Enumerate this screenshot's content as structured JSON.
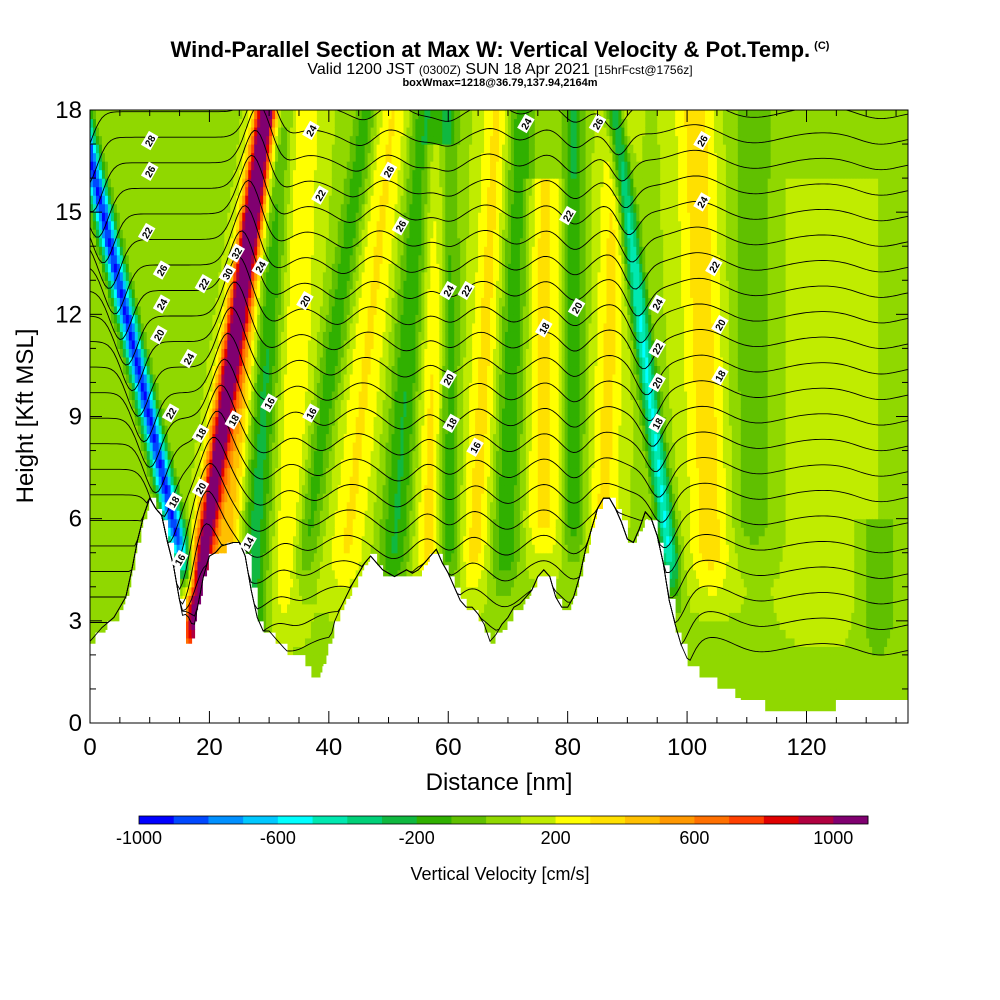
{
  "header": {
    "title": "Wind-Parallel Section at Max W: Vertical Velocity & Pot.Temp.",
    "copyright": "(C)",
    "valid_prefix": "Valid 1200 JST",
    "valid_utc": "(0300Z)",
    "valid_date": "SUN 18 Apr 2021",
    "forecast": "[15hrFcst@1756z]",
    "box_info": "boxWmax=1218@36.79,137.94,2164m"
  },
  "chart_data": {
    "type": "heatmap",
    "xlabel": "Distance [nm]",
    "ylabel": "Height [Kft MSL]",
    "xlim": [
      0,
      137
    ],
    "ylim": [
      0,
      18
    ],
    "x_ticks": [
      0,
      20,
      40,
      60,
      80,
      100,
      120
    ],
    "y_ticks": [
      0,
      3,
      6,
      9,
      12,
      15,
      18
    ],
    "colorbar": {
      "label": "Vertical Velocity [cm/s]",
      "min": -1000,
      "max": 1100,
      "step": 100,
      "tick_labels": [
        "-1000",
        "-600",
        "-200",
        "200",
        "600",
        "1000"
      ],
      "tick_values": [
        -1000,
        -600,
        -200,
        200,
        600,
        1000
      ],
      "colors": [
        "#0000ff",
        "#0048ff",
        "#0090ff",
        "#00c8ff",
        "#00ffff",
        "#00e8b0",
        "#00d078",
        "#10b840",
        "#30b000",
        "#60c000",
        "#90d800",
        "#c0ec00",
        "#ffff00",
        "#ffe000",
        "#ffc000",
        "#ff9800",
        "#ff7000",
        "#ff4000",
        "#e00000",
        "#b00040",
        "#800070"
      ]
    },
    "terrain_profile_kft": [
      [
        0,
        2.3
      ],
      [
        2,
        2.7
      ],
      [
        4,
        3.0
      ],
      [
        6,
        3.6
      ],
      [
        7,
        4.4
      ],
      [
        8,
        5.3
      ],
      [
        9,
        6.0
      ],
      [
        10,
        6.5
      ],
      [
        11,
        6.2
      ],
      [
        12,
        6.0
      ],
      [
        13,
        5.2
      ],
      [
        14,
        4.5
      ],
      [
        15,
        3.5
      ],
      [
        16,
        2.3
      ],
      [
        17,
        2.3
      ],
      [
        18,
        3.3
      ],
      [
        19,
        4.2
      ],
      [
        20,
        4.8
      ],
      [
        21,
        4.9
      ],
      [
        22,
        5.1
      ],
      [
        24,
        5.2
      ],
      [
        25,
        5.2
      ],
      [
        26,
        4.8
      ],
      [
        27,
        3.8
      ],
      [
        28,
        3.0
      ],
      [
        29,
        2.6
      ],
      [
        30,
        2.6
      ],
      [
        31,
        2.4
      ],
      [
        32,
        2.2
      ],
      [
        33,
        2.0
      ],
      [
        35,
        2.0
      ],
      [
        36,
        1.6
      ],
      [
        37,
        1.3
      ],
      [
        38,
        1.3
      ],
      [
        39,
        1.8
      ],
      [
        40,
        2.2
      ],
      [
        41,
        2.9
      ],
      [
        42,
        3.3
      ],
      [
        44,
        4.0
      ],
      [
        46,
        4.6
      ],
      [
        47,
        4.8
      ],
      [
        48,
        4.6
      ],
      [
        49,
        4.4
      ],
      [
        50,
        4.3
      ],
      [
        51,
        4.2
      ],
      [
        52,
        4.3
      ],
      [
        53,
        4.4
      ],
      [
        54,
        4.3
      ],
      [
        55,
        4.4
      ],
      [
        56,
        4.6
      ],
      [
        57,
        4.8
      ],
      [
        58,
        5.0
      ],
      [
        59,
        4.6
      ],
      [
        60,
        4.3
      ],
      [
        61,
        3.9
      ],
      [
        62,
        3.5
      ],
      [
        63,
        3.3
      ],
      [
        64,
        3.3
      ],
      [
        65,
        3.1
      ],
      [
        66,
        2.8
      ],
      [
        67,
        2.3
      ],
      [
        68,
        2.5
      ],
      [
        69,
        2.8
      ],
      [
        70,
        3.0
      ],
      [
        71,
        3.3
      ],
      [
        72,
        3.4
      ],
      [
        74,
        3.8
      ],
      [
        75,
        4.2
      ],
      [
        76,
        4.4
      ],
      [
        77,
        4.2
      ],
      [
        78,
        3.6
      ],
      [
        79,
        3.3
      ],
      [
        80,
        3.3
      ],
      [
        81,
        3.6
      ],
      [
        82,
        4.2
      ],
      [
        83,
        5.0
      ],
      [
        84,
        5.6
      ],
      [
        85,
        6.2
      ],
      [
        86,
        6.5
      ],
      [
        87,
        6.5
      ],
      [
        88,
        6.2
      ],
      [
        89,
        5.8
      ],
      [
        90,
        5.3
      ],
      [
        91,
        5.2
      ],
      [
        92,
        5.6
      ],
      [
        93,
        6.1
      ],
      [
        94,
        5.9
      ],
      [
        95,
        5.4
      ],
      [
        96,
        4.6
      ],
      [
        97,
        3.5
      ],
      [
        98,
        2.8
      ],
      [
        99,
        2.2
      ],
      [
        100,
        1.8
      ],
      [
        101,
        1.5
      ],
      [
        102,
        1.3
      ],
      [
        104,
        1.3
      ],
      [
        105,
        1.0
      ],
      [
        106,
        1.0
      ],
      [
        108,
        0.8
      ],
      [
        110,
        0.7
      ],
      [
        112,
        0.5
      ],
      [
        114,
        0.4
      ],
      [
        116,
        0.3
      ],
      [
        118,
        0.3
      ],
      [
        120,
        0.3
      ],
      [
        122,
        0.3
      ],
      [
        124,
        0.4
      ],
      [
        126,
        0.6
      ],
      [
        128,
        0.7
      ],
      [
        130,
        0.7
      ],
      [
        134,
        0.7
      ],
      [
        137,
        0.7
      ]
    ],
    "vertical_velocity_features_cm_s": [
      {
        "x_base": 14.5,
        "z_base": 5.5,
        "tilt_nm_per_kft": -1.3,
        "width_nm": 1.6,
        "peak": -1000,
        "z_top": 18
      },
      {
        "x_base": 17.5,
        "z_base": 3.0,
        "tilt_nm_per_kft": 0.8,
        "width_nm": 1.8,
        "peak": 1050,
        "z_top": 18
      },
      {
        "x_base": 22.0,
        "z_base": 3.0,
        "tilt_nm_per_kft": 0.55,
        "width_nm": 2.2,
        "peak": 350,
        "z_top": 18
      },
      {
        "x_base": 27.0,
        "z_base": 3.0,
        "tilt_nm_per_kft": 0.3,
        "width_nm": 2.5,
        "peak": -350,
        "z_top": 18
      },
      {
        "x_base": 33.0,
        "z_base": 4.0,
        "tilt_nm_per_kft": 0.2,
        "width_nm": 3.0,
        "peak": 200,
        "z_top": 18
      },
      {
        "x_base": 36.0,
        "z_base": 5.0,
        "tilt_nm_per_kft": 0.8,
        "width_nm": 2.0,
        "peak": -250,
        "z_top": 18
      },
      {
        "x_base": 43.0,
        "z_base": 5.0,
        "tilt_nm_per_kft": 0.6,
        "width_nm": 3.0,
        "peak": 220,
        "z_top": 18
      },
      {
        "x_base": 51.0,
        "z_base": 5.0,
        "tilt_nm_per_kft": 0.4,
        "width_nm": 2.5,
        "peak": -300,
        "z_top": 18
      },
      {
        "x_base": 57.0,
        "z_base": 5.0,
        "tilt_nm_per_kft": 0.1,
        "width_nm": 2.5,
        "peak": 260,
        "z_top": 17
      },
      {
        "x_base": 60.0,
        "z_base": 5.0,
        "tilt_nm_per_kft": 0.0,
        "width_nm": 1.8,
        "peak": -300,
        "z_top": 18
      },
      {
        "x_base": 64.5,
        "z_base": 5.0,
        "tilt_nm_per_kft": 0.3,
        "width_nm": 2.5,
        "peak": 250,
        "z_top": 18
      },
      {
        "x_base": 69.5,
        "z_base": 5.0,
        "tilt_nm_per_kft": 0.2,
        "width_nm": 2.5,
        "peak": -280,
        "z_top": 18
      },
      {
        "x_base": 76.0,
        "z_base": 6.0,
        "tilt_nm_per_kft": 0.0,
        "width_nm": 3.0,
        "peak": 250,
        "z_top": 16
      },
      {
        "x_base": 81.0,
        "z_base": 6.0,
        "tilt_nm_per_kft": 0.0,
        "width_nm": 1.8,
        "peak": -300,
        "z_top": 18
      },
      {
        "x_base": 86.0,
        "z_base": 6.0,
        "tilt_nm_per_kft": 0.2,
        "width_nm": 2.5,
        "peak": 240,
        "z_top": 18
      },
      {
        "x_base": 97.0,
        "z_base": 5.0,
        "tilt_nm_per_kft": -0.7,
        "width_nm": 1.5,
        "peak": -600,
        "z_top": 18
      },
      {
        "x_base": 104.0,
        "z_base": 5.0,
        "tilt_nm_per_kft": -0.2,
        "width_nm": 3.5,
        "peak": 270,
        "z_top": 18
      },
      {
        "x_base": 111.0,
        "z_base": 6.0,
        "tilt_nm_per_kft": 0.0,
        "width_nm": 4.0,
        "peak": -150,
        "z_top": 18
      },
      {
        "x_base": 123.0,
        "z_base": 4.0,
        "tilt_nm_per_kft": 0.0,
        "width_nm": 6.0,
        "peak": 100,
        "z_top": 16
      },
      {
        "x_base": 132.0,
        "z_base": 3.0,
        "tilt_nm_per_kft": 0.0,
        "width_nm": 3.0,
        "peak": -180,
        "z_top": 6
      }
    ],
    "potential_temperature_contour_labels": [
      {
        "value": "28",
        "x": 10.0,
        "z": 17.1
      },
      {
        "value": "26",
        "x": 10.0,
        "z": 16.2
      },
      {
        "value": "22",
        "x": 9.5,
        "z": 14.4
      },
      {
        "value": "26",
        "x": 12.0,
        "z": 13.3
      },
      {
        "value": "24",
        "x": 12.0,
        "z": 12.3
      },
      {
        "value": "20",
        "x": 11.5,
        "z": 11.4
      },
      {
        "value": "22",
        "x": 13.5,
        "z": 9.1
      },
      {
        "value": "18",
        "x": 14.0,
        "z": 6.5
      },
      {
        "value": "16",
        "x": 15.0,
        "z": 4.8
      },
      {
        "value": "24",
        "x": 16.5,
        "z": 10.7
      },
      {
        "value": "22",
        "x": 19.0,
        "z": 12.9
      },
      {
        "value": "20",
        "x": 18.5,
        "z": 6.9
      },
      {
        "value": "18",
        "x": 18.5,
        "z": 8.5
      },
      {
        "value": "30",
        "x": 23.0,
        "z": 13.2
      },
      {
        "value": "32",
        "x": 24.5,
        "z": 13.8
      },
      {
        "value": "24",
        "x": 28.5,
        "z": 13.4
      },
      {
        "value": "18",
        "x": 24.0,
        "z": 8.9
      },
      {
        "value": "14",
        "x": 26.5,
        "z": 5.3
      },
      {
        "value": "16",
        "x": 30.0,
        "z": 9.4
      },
      {
        "value": "16",
        "x": 37.0,
        "z": 9.1
      },
      {
        "value": "20",
        "x": 36.0,
        "z": 12.4
      },
      {
        "value": "22",
        "x": 38.5,
        "z": 15.5
      },
      {
        "value": "24",
        "x": 37.0,
        "z": 17.4
      },
      {
        "value": "26",
        "x": 50.0,
        "z": 16.2
      },
      {
        "value": "26",
        "x": 52.0,
        "z": 14.6
      },
      {
        "value": "24",
        "x": 60.0,
        "z": 12.7
      },
      {
        "value": "22",
        "x": 63.0,
        "z": 12.7
      },
      {
        "value": "20",
        "x": 60.0,
        "z": 10.1
      },
      {
        "value": "18",
        "x": 60.5,
        "z": 8.8
      },
      {
        "value": "16",
        "x": 64.5,
        "z": 8.1
      },
      {
        "value": "24",
        "x": 73.0,
        "z": 17.6
      },
      {
        "value": "22",
        "x": 80.0,
        "z": 14.9
      },
      {
        "value": "20",
        "x": 81.5,
        "z": 12.2
      },
      {
        "value": "18",
        "x": 76.0,
        "z": 11.6
      },
      {
        "value": "26",
        "x": 85.0,
        "z": 17.6
      },
      {
        "value": "24",
        "x": 95.0,
        "z": 12.3
      },
      {
        "value": "22",
        "x": 95.0,
        "z": 11.0
      },
      {
        "value": "20",
        "x": 95.0,
        "z": 10.0
      },
      {
        "value": "18",
        "x": 95.0,
        "z": 8.8
      },
      {
        "value": "26",
        "x": 102.5,
        "z": 17.1
      },
      {
        "value": "24",
        "x": 102.5,
        "z": 15.3
      },
      {
        "value": "22",
        "x": 104.5,
        "z": 13.4
      },
      {
        "value": "20",
        "x": 105.5,
        "z": 11.7
      },
      {
        "value": "18",
        "x": 105.5,
        "z": 10.2
      }
    ]
  }
}
